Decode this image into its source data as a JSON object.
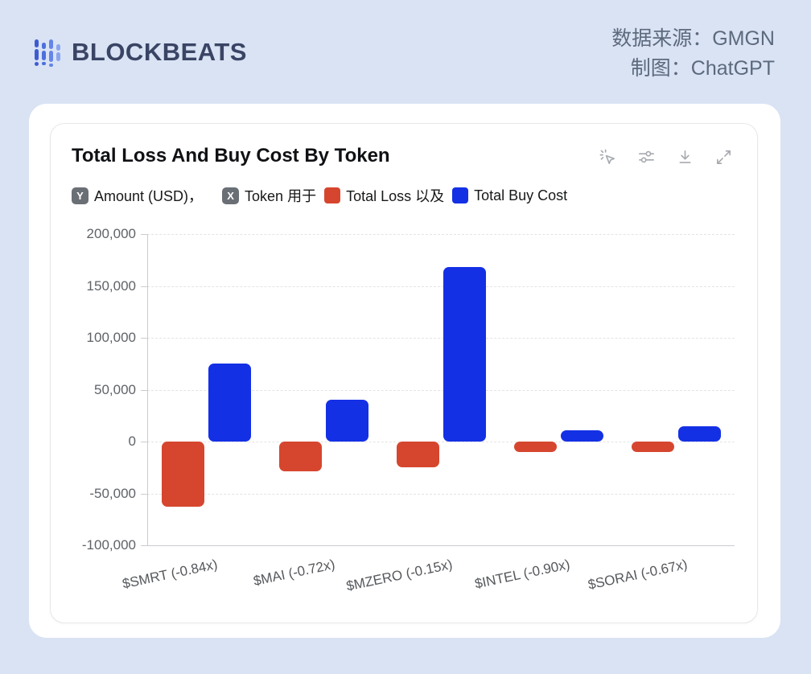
{
  "header": {
    "logo_text": "BLOCKBEATS",
    "source_line1": "数据来源：GMGN",
    "source_line2": "制图：ChatGPT"
  },
  "chart_card": {
    "title": "Total Loss And Buy Cost By Token",
    "toolbar_icons": [
      "magic-cursor",
      "sliders",
      "download",
      "expand"
    ],
    "legend": {
      "y_badge": "Y",
      "y_text": "Amount (USD)，",
      "x_badge": "X",
      "x_text": "Token 用于",
      "loss_text": "Total Loss 以及",
      "buy_text": "Total Buy Cost"
    }
  },
  "chart_data": {
    "type": "bar",
    "title": "Total Loss And Buy Cost By Token",
    "categories": [
      "$SMRT (-0.84x)",
      "$MAI (-0.72x)",
      "$MZERO (-0.15x)",
      "$INTEL (-0.90x)",
      "$SORAI (-0.67x)"
    ],
    "series": [
      {
        "name": "Total Loss",
        "color": "#d6462f",
        "values": [
          -63000,
          -29000,
          -25000,
          -10000,
          -10000
        ]
      },
      {
        "name": "Total Buy Cost",
        "color": "#1430e5",
        "values": [
          75000,
          40000,
          168000,
          11000,
          15000
        ]
      }
    ],
    "ylabel": "Amount (USD)",
    "xlabel": "Token",
    "ylim": [
      -100000,
      200000
    ],
    "ytick_step": 50000,
    "grid": true,
    "legend_position": "top",
    "xlabel_rotation_deg": -12
  },
  "colors": {
    "page_bg": "#d9e3f4",
    "card_bg": "#ffffff",
    "loss": "#d6462f",
    "buy": "#1430e5",
    "axis_text": "#5f6368",
    "grid_line": "#e4e4e6",
    "axis_line": "#c9ccd0",
    "badge_bg": "#6a6f76",
    "icon_gray": "#a6a9ae",
    "header_text": "#5d6a7e",
    "logo_color": "#3a4464"
  }
}
